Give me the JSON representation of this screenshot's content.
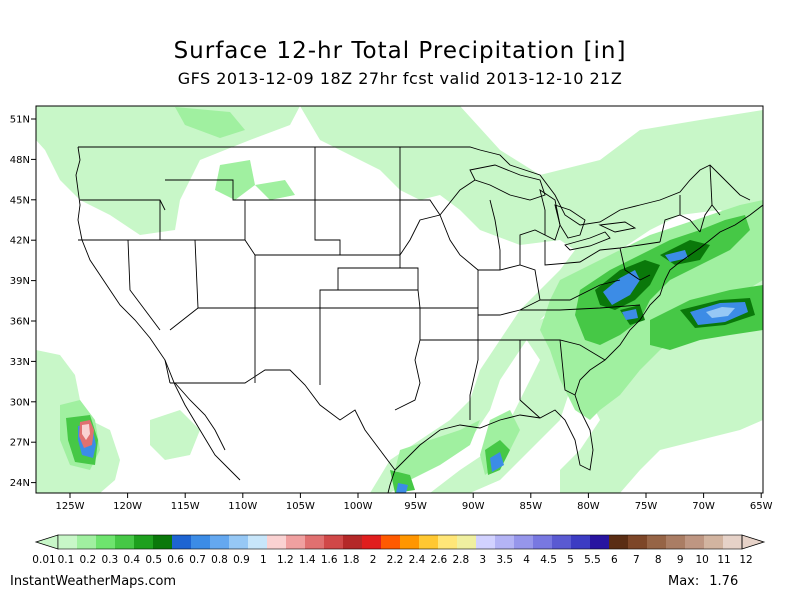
{
  "header": {
    "title": "Surface 12-hr Total Precipitation [in]",
    "subtitle": "GFS 2013-12-09 18Z 27hr fcst valid 2013-12-10 21Z"
  },
  "map": {
    "lat_labels": [
      "51N",
      "48N",
      "45N",
      "42N",
      "39N",
      "36N",
      "33N",
      "30N",
      "27N",
      "24N"
    ],
    "lon_labels": [
      "125W",
      "120W",
      "115W",
      "110W",
      "105W",
      "100W",
      "95W",
      "90W",
      "85W",
      "80W",
      "75W",
      "70W",
      "65W"
    ]
  },
  "colorbar": {
    "colors": [
      "#c8f7c8",
      "#a0f0a0",
      "#6ee46e",
      "#46c846",
      "#1ea01e",
      "#0a780a",
      "#1e64d2",
      "#3c8ce6",
      "#64a8f0",
      "#96c8f5",
      "#c8e6fa",
      "#fad2d2",
      "#f0a0a0",
      "#e07070",
      "#d04848",
      "#b42828",
      "#e01e1e",
      "#ff5a00",
      "#ff9600",
      "#ffc832",
      "#ffe678",
      "#f0f0a0",
      "#d2d2ff",
      "#b4b4f5",
      "#9696eb",
      "#7878e1",
      "#5a5ad2",
      "#3c3cc3",
      "#2814a0",
      "#5a2d14",
      "#7d4628",
      "#966446",
      "#aa7d64",
      "#be9682",
      "#d2b4a0",
      "#e6d2c8"
    ],
    "labels": [
      "0.01",
      "0.1",
      "0.2",
      "0.3",
      "0.4",
      "0.5",
      "0.6",
      "0.7",
      "0.8",
      "0.9",
      "1",
      "1.2",
      "1.4",
      "1.6",
      "1.8",
      "2",
      "2.2",
      "2.4",
      "2.6",
      "2.8",
      "3",
      "3.5",
      "4",
      "4.5",
      "5",
      "5.5",
      "6",
      "7",
      "8",
      "9",
      "10",
      "11",
      "12"
    ]
  },
  "footer": {
    "site": "InstantWeatherMaps.com",
    "max_label": "Max:",
    "max_value": "1.76"
  }
}
